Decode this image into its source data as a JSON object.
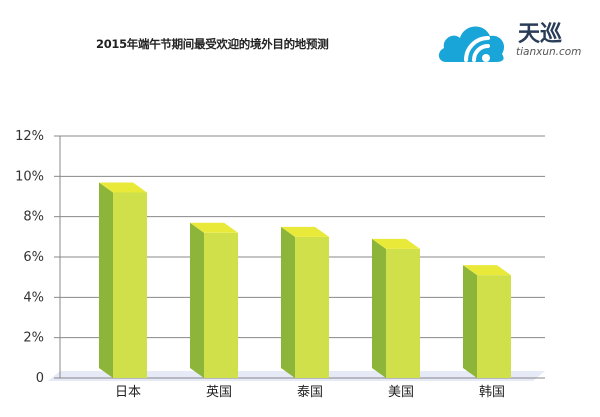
{
  "header": {
    "title": "2015年端午节期间最受欢迎的境外目的地预测"
  },
  "logo": {
    "name": "天巡",
    "domain": "tianxun.com",
    "icon": "cloud-wifi-icon",
    "color": "#1aa5d8"
  },
  "colors": {
    "bar_front": "#cfe04a",
    "bar_side": "#8cb53a",
    "bar_top": "#e9e93a",
    "floor": "#e6e9f6",
    "grid": "#888888"
  },
  "chart_data": {
    "type": "bar",
    "categories": [
      "日本",
      "英国",
      "泰国",
      "美国",
      "韩国"
    ],
    "values": [
      9.2,
      7.2,
      7.0,
      6.4,
      5.1
    ],
    "ylim": [
      0,
      12
    ],
    "yticks": [
      0,
      2,
      4,
      6,
      8,
      10,
      12
    ],
    "ytick_labels": [
      "0",
      "2%",
      "4%",
      "6%",
      "8%",
      "10%",
      "12%"
    ],
    "grid": true,
    "style": "3d"
  }
}
